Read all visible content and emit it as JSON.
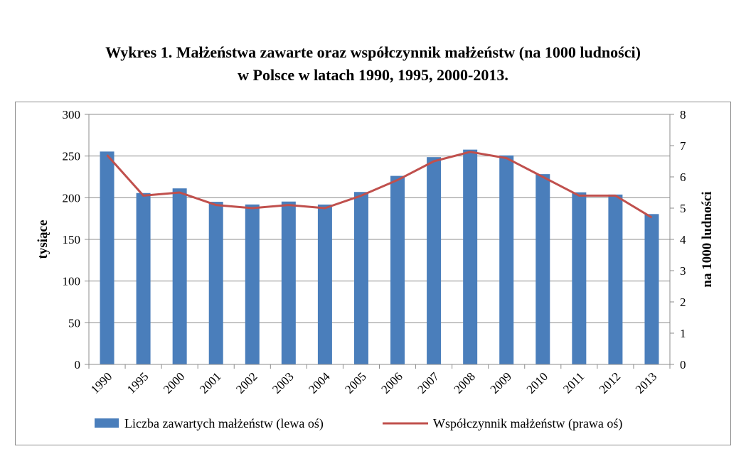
{
  "title": {
    "line1": "Wykres 1. Małżeństwa zawarte oraz współczynnik małżeństw (na 1000 ludności)",
    "line2": "w Polsce w latach 1990, 1995, 2000-2013."
  },
  "chart_data": {
    "type": "bar",
    "categories": [
      "1990",
      "1995",
      "2000",
      "2001",
      "2002",
      "2003",
      "2004",
      "2005",
      "2006",
      "2007",
      "2008",
      "2009",
      "2010",
      "2011",
      "2012",
      "2013"
    ],
    "series": [
      {
        "name": "Liczba zawartych małżeństw (lewa oś)",
        "type": "bar",
        "axis": "left",
        "color": "#4a7ebb",
        "values": [
          255.4,
          205.6,
          211.2,
          195.1,
          191.9,
          195.4,
          191.8,
          206.9,
          226.2,
          248.7,
          257.7,
          250.8,
          228.3,
          206.5,
          203.8,
          180.4
        ]
      },
      {
        "name": "Współczynnik małżeństw (prawa oś)",
        "type": "line",
        "axis": "right",
        "color": "#c0504d",
        "values": [
          6.7,
          5.4,
          5.5,
          5.1,
          5.0,
          5.1,
          5.0,
          5.4,
          5.9,
          6.5,
          6.8,
          6.6,
          6.0,
          5.4,
          5.4,
          4.7
        ]
      }
    ],
    "ylabel": "tysiące",
    "y2label": "na  1000 ludności",
    "ylim": [
      0,
      300
    ],
    "y2lim": [
      0,
      8
    ],
    "yticks": [
      "0",
      "50",
      "100",
      "150",
      "200",
      "250",
      "300"
    ],
    "y2ticks": [
      "0",
      "1",
      "2",
      "3",
      "4",
      "5",
      "6",
      "7",
      "8"
    ],
    "grid": true,
    "legend_position": "bottom"
  }
}
